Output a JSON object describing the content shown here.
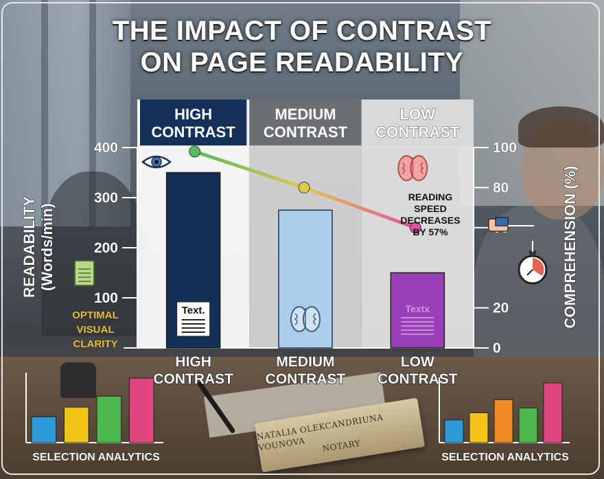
{
  "title_line1": "THE IMPACT OF CONTRAST",
  "title_line2": "ON PAGE READABILITY",
  "chart_data": {
    "type": "bar",
    "categories": [
      "HIGH CONTRAST",
      "MEDIUM CONTRAST",
      "LOW CONTRAST"
    ],
    "column_headers": [
      {
        "line1": "HIGH",
        "line2": "CONTRAST",
        "bg": "#14305a",
        "fg": "#ffffff"
      },
      {
        "line1": "MEDIUM",
        "line2": "CONTRAST",
        "bg": "#6b6f73",
        "fg": "#ffffff"
      },
      {
        "line1": "LOW",
        "line2": "CONTRAST",
        "bg": "#d8d8d8",
        "fg": "#ffffff"
      }
    ],
    "axis_categories": [
      {
        "line1": "HIGH",
        "line2": "CONTRAST"
      },
      {
        "line1": "MEDIUM",
        "line2": "CONTRAST"
      },
      {
        "line1": "LOW",
        "line2": "CONTRAST"
      }
    ],
    "series": [
      {
        "name": "",
        "axis": "left",
        "type": "bar",
        "values": [
          350,
          275,
          150
        ],
        "colors": [
          "#142f57",
          "#a9cdea",
          "#9a3fb8"
        ]
      },
      {
        "name": "",
        "axis": "right",
        "type": "line",
        "values": [
          98,
          80,
          60
        ],
        "gradient": [
          "#5cb85c",
          "#e0c94a",
          "#e24fa0"
        ]
      }
    ],
    "ylabel_line1": "READABILITY",
    "ylabel_line2": "(Words/min)",
    "y2label": "COMPREHENSION (%)",
    "ylim": [
      0,
      400
    ],
    "y2lim": [
      0,
      100
    ],
    "yticks": [
      100,
      200,
      300,
      400
    ],
    "y2ticks": [
      0,
      20,
      60,
      80,
      100
    ],
    "column_backgrounds": [
      "#ffffff",
      "#d6d6d6",
      "#e4e4e4"
    ],
    "annotations": {
      "speed_line1": "READING",
      "speed_line2": "SPEED",
      "speed_line3": "DECREASES",
      "speed_line4": "BY 57%",
      "clarity_line1": "OPTIMAL",
      "clarity_line2": "VISUAL",
      "clarity_line3": "CLARITY",
      "card_high": "Text.",
      "card_low": "Textx"
    }
  },
  "mini_charts": [
    {
      "caption": "SELECTION ANALYTICS",
      "values": [
        40,
        55,
        72,
        100
      ],
      "colors": [
        "#2e9ad8",
        "#f2c418",
        "#4cb84c",
        "#e0457e"
      ]
    },
    {
      "caption": "SELECTION ANALYTICS",
      "values": [
        38,
        50,
        72,
        58,
        100
      ],
      "colors": [
        "#2e9ad8",
        "#f2c418",
        "#f08a24",
        "#4cb84c",
        "#e0457e"
      ]
    }
  ],
  "nameplate_line1": "NATALIA OLEKCANDRIUNA VOUNOVA",
  "nameplate_line2": "NOTARY",
  "colors": {
    "accent_gold": "#e6bf3c",
    "navy": "#14305a"
  }
}
